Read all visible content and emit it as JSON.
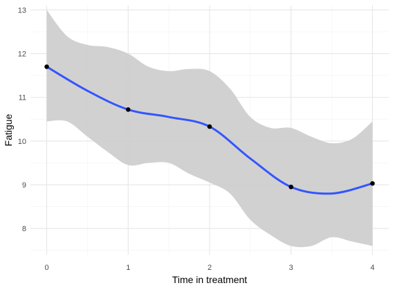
{
  "chart_data": {
    "type": "line",
    "title": "",
    "xlabel": "Time in treatment",
    "ylabel": "Fatigue",
    "xlim": [
      -0.2,
      4.2
    ],
    "ylim": [
      7.4,
      13.1
    ],
    "x_ticks": [
      0,
      1,
      2,
      3,
      4
    ],
    "y_ticks": [
      8,
      9,
      10,
      11,
      12,
      13
    ],
    "grid": true,
    "legend": "none",
    "colors": {
      "line": "#3355ff",
      "band": "#cccccc",
      "points": "#000000",
      "grid_major": "#e6e6e6",
      "grid_minor": "#f2f2f2"
    },
    "points": {
      "x": [
        0,
        1,
        2,
        3,
        4
      ],
      "y": [
        11.7,
        10.72,
        10.33,
        8.95,
        9.03
      ]
    },
    "smooth": {
      "x": [
        0,
        0.5,
        1.0,
        1.5,
        2.0,
        2.5,
        3.0,
        3.5,
        4.0
      ],
      "y": [
        11.7,
        11.15,
        10.72,
        10.55,
        10.33,
        9.6,
        8.95,
        8.8,
        9.03
      ]
    },
    "band": {
      "x": [
        0,
        0.25,
        0.5,
        0.75,
        1.0,
        1.25,
        1.5,
        1.75,
        2.0,
        2.25,
        2.5,
        2.75,
        3.0,
        3.25,
        3.5,
        3.75,
        4.0
      ],
      "upper": [
        13.0,
        12.4,
        12.2,
        12.15,
        12.0,
        11.7,
        11.6,
        11.65,
        11.6,
        11.2,
        10.55,
        10.3,
        10.3,
        10.1,
        9.95,
        10.05,
        10.45
      ],
      "lower": [
        10.45,
        10.45,
        10.1,
        9.75,
        9.45,
        9.5,
        9.5,
        9.25,
        9.05,
        8.8,
        8.2,
        7.85,
        7.6,
        7.6,
        7.8,
        7.7,
        7.6
      ]
    }
  }
}
